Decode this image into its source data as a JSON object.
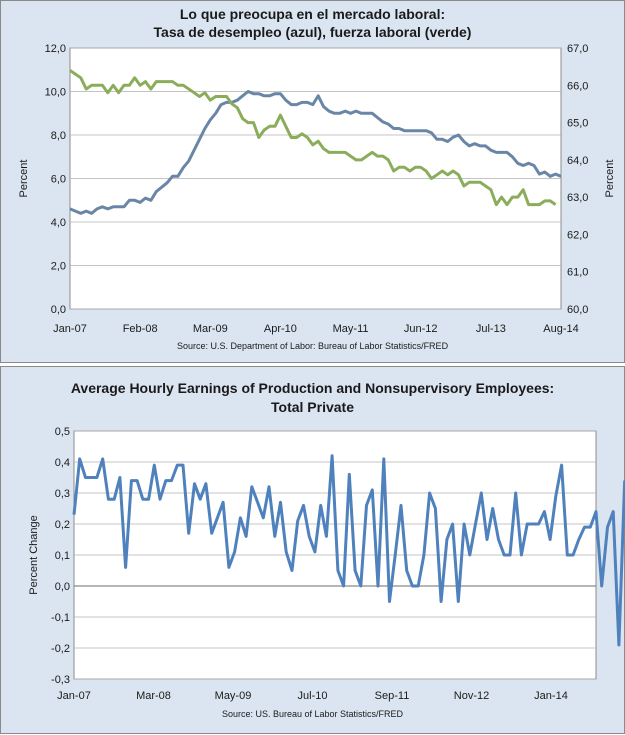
{
  "chart_data": [
    {
      "type": "line",
      "title": "Lo que preocupa en el mercado laboral:",
      "subtitle": "Tasa de desempleo (azul), fuerza laboral (verde)",
      "ylabel": "Percent",
      "y2label": "Percent",
      "source": "Source: U.S. Department of Labor: Bureau of Labor Statistics/FRED",
      "grid": true,
      "legend": "none",
      "x_ticks": [
        "Jan-07",
        "Feb-08",
        "Mar-09",
        "Apr-10",
        "May-11",
        "Jun-12",
        "Jul-13",
        "Aug-14"
      ],
      "x_range": [
        0,
        91
      ],
      "ylim": [
        0,
        12
      ],
      "y_ticks": [
        "0,0",
        "2,0",
        "4,0",
        "6,0",
        "8,0",
        "10,0",
        "12,0"
      ],
      "y2lim": [
        60,
        67
      ],
      "y2_ticks": [
        "60,0",
        "61,0",
        "62,0",
        "63,0",
        "64,0",
        "65,0",
        "66,0",
        "67,0"
      ],
      "series": [
        {
          "name": "Tasa de desempleo (azul)",
          "color": "#6a86a6",
          "axis": "left",
          "values": [
            4.6,
            4.5,
            4.4,
            4.5,
            4.4,
            4.6,
            4.7,
            4.6,
            4.7,
            4.7,
            4.7,
            5.0,
            5.0,
            4.9,
            5.1,
            5.0,
            5.4,
            5.6,
            5.8,
            6.1,
            6.1,
            6.5,
            6.8,
            7.3,
            7.8,
            8.3,
            8.7,
            9.0,
            9.4,
            9.5,
            9.5,
            9.6,
            9.8,
            10.0,
            9.9,
            9.9,
            9.8,
            9.8,
            9.9,
            9.9,
            9.6,
            9.4,
            9.4,
            9.5,
            9.5,
            9.4,
            9.8,
            9.3,
            9.1,
            9.0,
            9.0,
            9.1,
            9.0,
            9.1,
            9.0,
            9.0,
            9.0,
            8.8,
            8.6,
            8.5,
            8.3,
            8.3,
            8.2,
            8.2,
            8.2,
            8.2,
            8.2,
            8.1,
            7.8,
            7.8,
            7.7,
            7.9,
            8.0,
            7.7,
            7.5,
            7.6,
            7.5,
            7.5,
            7.3,
            7.2,
            7.2,
            7.2,
            7.0,
            6.7,
            6.6,
            6.7,
            6.6,
            6.2,
            6.3,
            6.1,
            6.2,
            6.1
          ]
        },
        {
          "name": "Fuerza laboral (verde)",
          "color": "#8bad5b",
          "axis": "right",
          "values": [
            66.4,
            66.3,
            66.2,
            65.9,
            66.0,
            66.0,
            66.0,
            65.8,
            66.0,
            65.8,
            66.0,
            66.0,
            66.2,
            66.0,
            66.1,
            65.9,
            66.1,
            66.1,
            66.1,
            66.1,
            66.0,
            66.0,
            65.9,
            65.8,
            65.7,
            65.8,
            65.6,
            65.7,
            65.7,
            65.7,
            65.5,
            65.4,
            65.1,
            65.0,
            65.0,
            64.6,
            64.8,
            64.9,
            64.9,
            65.2,
            64.9,
            64.6,
            64.6,
            64.7,
            64.6,
            64.4,
            64.5,
            64.3,
            64.2,
            64.2,
            64.2,
            64.2,
            64.1,
            64.0,
            64.0,
            64.1,
            64.2,
            64.1,
            64.1,
            64.0,
            63.7,
            63.8,
            63.8,
            63.7,
            63.8,
            63.8,
            63.7,
            63.5,
            63.6,
            63.7,
            63.6,
            63.7,
            63.6,
            63.3,
            63.4,
            63.4,
            63.4,
            63.3,
            63.2,
            62.8,
            63.0,
            62.8,
            63.0,
            63.0,
            63.2,
            62.8,
            62.8,
            62.8,
            62.9,
            62.9,
            62.8
          ]
        }
      ]
    },
    {
      "type": "line",
      "title": "Average Hourly Earnings of Production and Nonsupervisory Employees:",
      "subtitle": "Total Private",
      "ylabel": "Percent Change",
      "source": "Source: US. Bureau of Labor Statistics/FRED",
      "grid": true,
      "legend": "none",
      "x_ticks": [
        "Jan-07",
        "Mar-08",
        "May-09",
        "Jul-10",
        "Sep-11",
        "Nov-12",
        "Jan-14"
      ],
      "x_range": [
        0,
        91
      ],
      "ylim": [
        -0.3,
        0.5
      ],
      "y_ticks": [
        "-0,3",
        "-0,2",
        "-0,1",
        "0,0",
        "0,1",
        "0,2",
        "0,3",
        "0,4",
        "0,5"
      ],
      "series": [
        {
          "name": "Average Hourly Earnings",
          "color": "#4f81bd",
          "axis": "left",
          "values": [
            0.23,
            0.41,
            0.35,
            0.35,
            0.35,
            0.41,
            0.28,
            0.28,
            0.35,
            0.06,
            0.34,
            0.34,
            0.28,
            0.28,
            0.39,
            0.28,
            0.34,
            0.34,
            0.39,
            0.39,
            0.17,
            0.33,
            0.28,
            0.33,
            0.17,
            0.22,
            0.27,
            0.06,
            0.11,
            0.22,
            0.16,
            0.32,
            0.27,
            0.22,
            0.32,
            0.16,
            0.27,
            0.11,
            0.05,
            0.21,
            0.26,
            0.16,
            0.11,
            0.26,
            0.16,
            0.42,
            0.05,
            0.0,
            0.36,
            0.05,
            0.0,
            0.26,
            0.31,
            0.0,
            0.41,
            -0.05,
            0.1,
            0.26,
            0.05,
            0.0,
            0.0,
            0.1,
            0.3,
            0.25,
            -0.05,
            0.15,
            0.2,
            -0.05,
            0.2,
            0.1,
            0.2,
            0.3,
            0.15,
            0.25,
            0.15,
            0.1,
            0.1,
            0.3,
            0.1,
            0.2,
            0.2,
            0.2,
            0.24,
            0.15,
            0.29,
            0.39,
            0.1,
            0.1,
            0.15,
            0.19,
            0.19,
            0.24,
            0.0,
            0.19,
            0.24,
            -0.19,
            0.34
          ]
        }
      ]
    }
  ]
}
